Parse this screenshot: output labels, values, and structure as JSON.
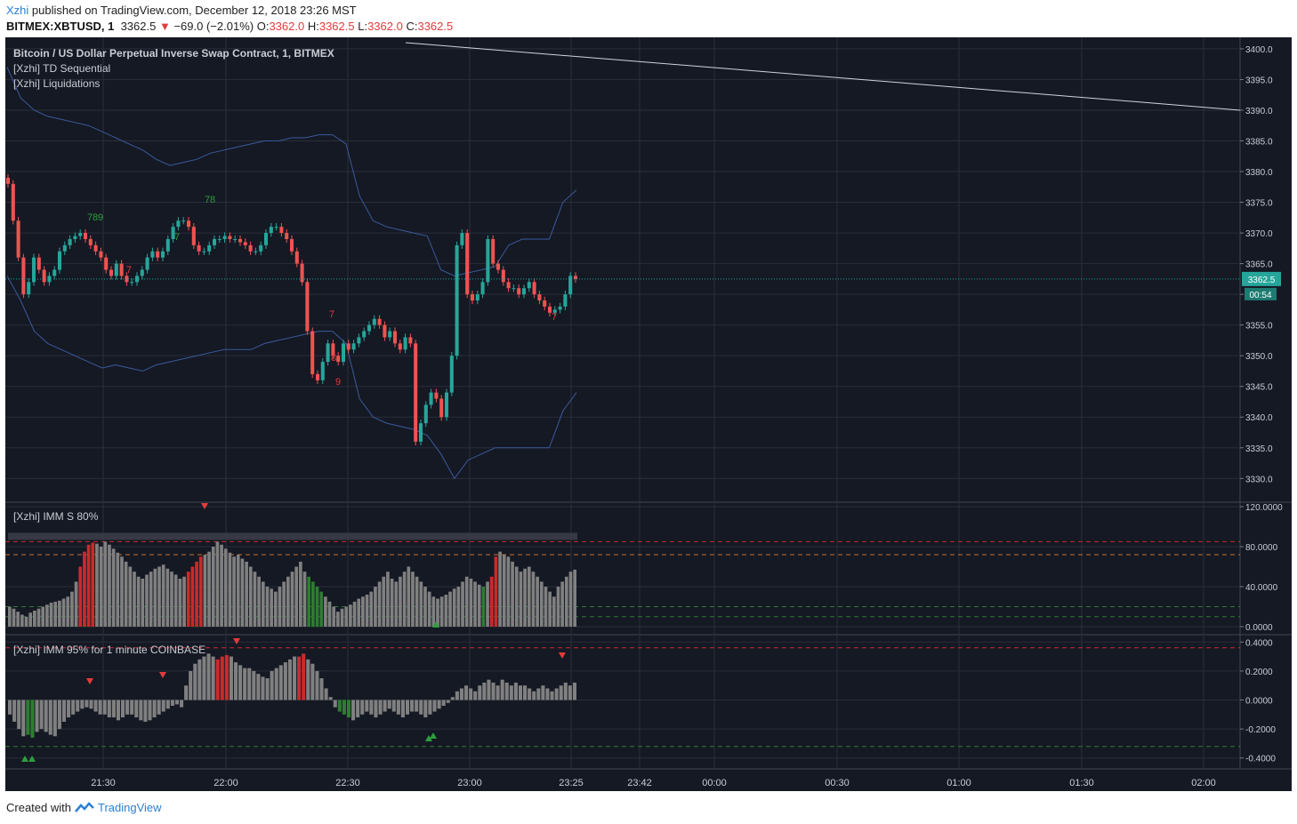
{
  "header": {
    "author": "Xzhi",
    "published_text": "published on TradingView.com, December 12, 2018 23:26 MST",
    "symbol": "BITMEX:XBTUSD, 1",
    "price": "3362.5",
    "change_arrow": "▼",
    "change": "−69.0 (−2.01%)",
    "o_label": "O:",
    "o": "3362.0",
    "h_label": "H:",
    "h": "3362.5",
    "l_label": "L:",
    "l": "3362.0",
    "c_label": "C:",
    "c": "3362.5"
  },
  "legend": {
    "main_title": "Bitcoin / US Dollar Perpetual Inverse Swap Contract, 1, BITMEX",
    "study1": "[Xzhi] TD Sequential",
    "study2": "[Xzhi] Liquidations",
    "pane2": "[Xzhi] IMM S 80%",
    "pane3": "[Xzhi] IMM 95% for 1 minute COINBASE"
  },
  "price_badge": "3362.5",
  "countdown_badge": "00:54",
  "footer": {
    "created_with": "Created with",
    "brand": "TradingView"
  },
  "colors": {
    "background": "#151924",
    "up": "#26a69a",
    "down": "#ef5350",
    "band": "#3a5a9a",
    "grid": "#2a2e39",
    "histogram": "#808080",
    "hist_red": "#c92b2b",
    "hist_green": "#2e7d32"
  },
  "chart_data": [
    {
      "type": "candlestick",
      "title": "Bitcoin / US Dollar Perpetual Inverse Swap Contract, 1, BITMEX",
      "x_ticks": [
        "21:30",
        "22:00",
        "22:30",
        "23:00",
        "23:25",
        "23:42",
        "00:00",
        "00:30",
        "01:00",
        "01:30",
        "02:00"
      ],
      "y_ticks": [
        "3400.0",
        "3395.0",
        "3390.0",
        "3385.0",
        "3380.0",
        "3375.0",
        "3370.0",
        "3365.0",
        "3360.0",
        "3355.0",
        "3350.0",
        "3345.0",
        "3340.0",
        "3335.0",
        "3330.0"
      ],
      "ylim": [
        3327,
        3401
      ],
      "last_price": 3362.5,
      "closes": [
        3378,
        3372,
        3366,
        3360,
        3362,
        3366,
        3364,
        3362,
        3363,
        3364,
        3367,
        3368,
        3369,
        3369.5,
        3370,
        3369,
        3368,
        3367,
        3366,
        3364,
        3363,
        3365,
        3363,
        3362,
        3362,
        3363,
        3364,
        3366,
        3367,
        3366,
        3367,
        3369,
        3371,
        3372,
        3372,
        3371,
        3368,
        3367,
        3367,
        3368,
        3369,
        3369,
        3369.5,
        3369,
        3369,
        3368.5,
        3368,
        3367,
        3367,
        3368,
        3370,
        3371,
        3371,
        3370,
        3369,
        3367,
        3365,
        3362,
        3354,
        3347,
        3346,
        3349,
        3352,
        3350,
        3349,
        3352,
        3351,
        3352,
        3353,
        3354,
        3355,
        3356,
        3355,
        3353,
        3354,
        3352,
        3351,
        3353,
        3352,
        3336,
        3339,
        3342,
        3344,
        3343,
        3340,
        3344,
        3350,
        3368,
        3370,
        3360,
        3359,
        3360,
        3362,
        3369,
        3365,
        3364,
        3362,
        3361,
        3361,
        3360,
        3361,
        3362,
        3360,
        3359,
        3358,
        3357,
        3357.5,
        3358,
        3360,
        3363,
        3362.5
      ],
      "upper_band": [
        3397,
        3392,
        3390,
        3389,
        3388.5,
        3388,
        3387.5,
        3386.5,
        3385.5,
        3384.5,
        3383.5,
        3382,
        3381,
        3381.5,
        3382,
        3383,
        3383.5,
        3384,
        3384.5,
        3385,
        3385,
        3385.5,
        3385.5,
        3386,
        3386,
        3384.5,
        3376,
        3372,
        3371,
        3370.5,
        3370,
        3369.5,
        3364,
        3363,
        3363.5,
        3364,
        3364.5,
        3368,
        3369,
        3369,
        3369,
        3375,
        3377
      ],
      "lower_band": [
        3363,
        3359,
        3354,
        3352,
        3351,
        3350,
        3349,
        3348,
        3348.5,
        3348,
        3347.5,
        3348.5,
        3349,
        3349.5,
        3350,
        3350.5,
        3351,
        3351,
        3351,
        3352,
        3352.5,
        3353,
        3353.5,
        3354,
        3354,
        3352,
        3343,
        3340,
        3339,
        3338.5,
        3338,
        3337,
        3334,
        3330,
        3333,
        3334,
        3335,
        3335,
        3335,
        3335,
        3335,
        3341,
        3344
      ],
      "trendline": {
        "from": 3401,
        "to": 3390
      },
      "td_labels_up": [
        "7",
        "8",
        "9",
        "7",
        "7",
        "8"
      ],
      "td_labels_down": [
        "7",
        "7",
        "8",
        "9",
        "7"
      ]
    },
    {
      "type": "bar",
      "title": "[Xzhi] IMM S 80%",
      "y_ticks": [
        "120.0000",
        "80.0000",
        "40.0000",
        "0.0000"
      ],
      "ylim": [
        0,
        120
      ],
      "levels": {
        "upper_red": 85,
        "upper_orange": 72,
        "lower_green1": 20,
        "lower_green2": 10
      },
      "values": [
        20,
        18,
        15,
        12,
        10,
        14,
        16,
        18,
        20,
        22,
        24,
        25,
        26,
        28,
        30,
        35,
        45,
        60,
        75,
        82,
        84,
        83,
        80,
        85,
        82,
        78,
        74,
        70,
        65,
        60,
        55,
        50,
        48,
        52,
        55,
        58,
        60,
        62,
        58,
        55,
        52,
        48,
        50,
        55,
        60,
        65,
        70,
        72,
        75,
        80,
        85,
        82,
        78,
        74,
        70,
        72,
        68,
        65,
        60,
        55,
        50,
        45,
        40,
        38,
        35,
        40,
        45,
        50,
        55,
        60,
        65,
        55,
        50,
        45,
        40,
        35,
        30,
        25,
        20,
        15,
        18,
        20,
        22,
        25,
        28,
        30,
        32,
        35,
        40,
        45,
        50,
        55,
        48,
        45,
        50,
        55,
        60,
        55,
        50,
        45,
        40,
        35,
        30,
        28,
        30,
        32,
        35,
        38,
        40,
        45,
        50,
        48,
        45,
        42,
        40,
        45,
        50,
        70,
        75,
        72,
        70,
        65,
        60,
        55,
        58,
        60,
        55,
        50,
        45,
        40,
        35,
        30,
        40,
        45,
        50,
        55,
        57
      ],
      "red_bars": [
        17,
        18,
        19,
        20,
        43,
        44,
        45,
        46,
        116,
        117
      ],
      "green_bars": [
        72,
        73,
        74,
        75,
        114
      ]
    },
    {
      "type": "bar",
      "title": "[Xzhi] IMM 95% for 1 minute COINBASE",
      "y_ticks": [
        "0.4000",
        "0.2000",
        "0.0000",
        "-0.2000",
        "-0.4000"
      ],
      "ylim": [
        -0.42,
        0.42
      ],
      "levels": {
        "upper_red": 0.36,
        "lower_green": -0.32
      },
      "values": [
        -0.1,
        -0.15,
        -0.2,
        -0.25,
        -0.24,
        -0.26,
        -0.22,
        -0.2,
        -0.22,
        -0.24,
        -0.25,
        -0.2,
        -0.15,
        -0.12,
        -0.1,
        -0.08,
        -0.06,
        -0.05,
        -0.06,
        -0.08,
        -0.1,
        -0.1,
        -0.12,
        -0.12,
        -0.14,
        -0.12,
        -0.1,
        -0.1,
        -0.12,
        -0.14,
        -0.15,
        -0.14,
        -0.12,
        -0.1,
        -0.08,
        -0.06,
        -0.04,
        -0.03,
        -0.05,
        0.1,
        0.2,
        0.25,
        0.28,
        0.3,
        0.32,
        0.3,
        0.28,
        0.3,
        0.31,
        0.3,
        0.26,
        0.24,
        0.22,
        0.22,
        0.2,
        0.18,
        0.16,
        0.15,
        0.2,
        0.22,
        0.24,
        0.26,
        0.28,
        0.3,
        0.3,
        0.32,
        0.28,
        0.25,
        0.2,
        0.15,
        0.08,
        0.02,
        -0.05,
        -0.08,
        -0.1,
        -0.12,
        -0.14,
        -0.12,
        -0.1,
        -0.08,
        -0.1,
        -0.12,
        -0.1,
        -0.08,
        -0.06,
        -0.08,
        -0.1,
        -0.12,
        -0.1,
        -0.08,
        -0.08,
        -0.1,
        -0.12,
        -0.1,
        -0.08,
        -0.06,
        -0.04,
        -0.02,
        0.02,
        0.06,
        0.08,
        0.1,
        0.08,
        0.06,
        0.1,
        0.12,
        0.14,
        0.12,
        0.1,
        0.14,
        0.12,
        0.1,
        0.12,
        0.1,
        0.1,
        0.08,
        0.06,
        0.08,
        0.1,
        0.08,
        0.06,
        0.08,
        0.1,
        0.12,
        0.1,
        0.12
      ],
      "red_bars": [
        46,
        47,
        48,
        64,
        65
      ],
      "green_bars": [
        4,
        5,
        73,
        74,
        75
      ]
    }
  ]
}
